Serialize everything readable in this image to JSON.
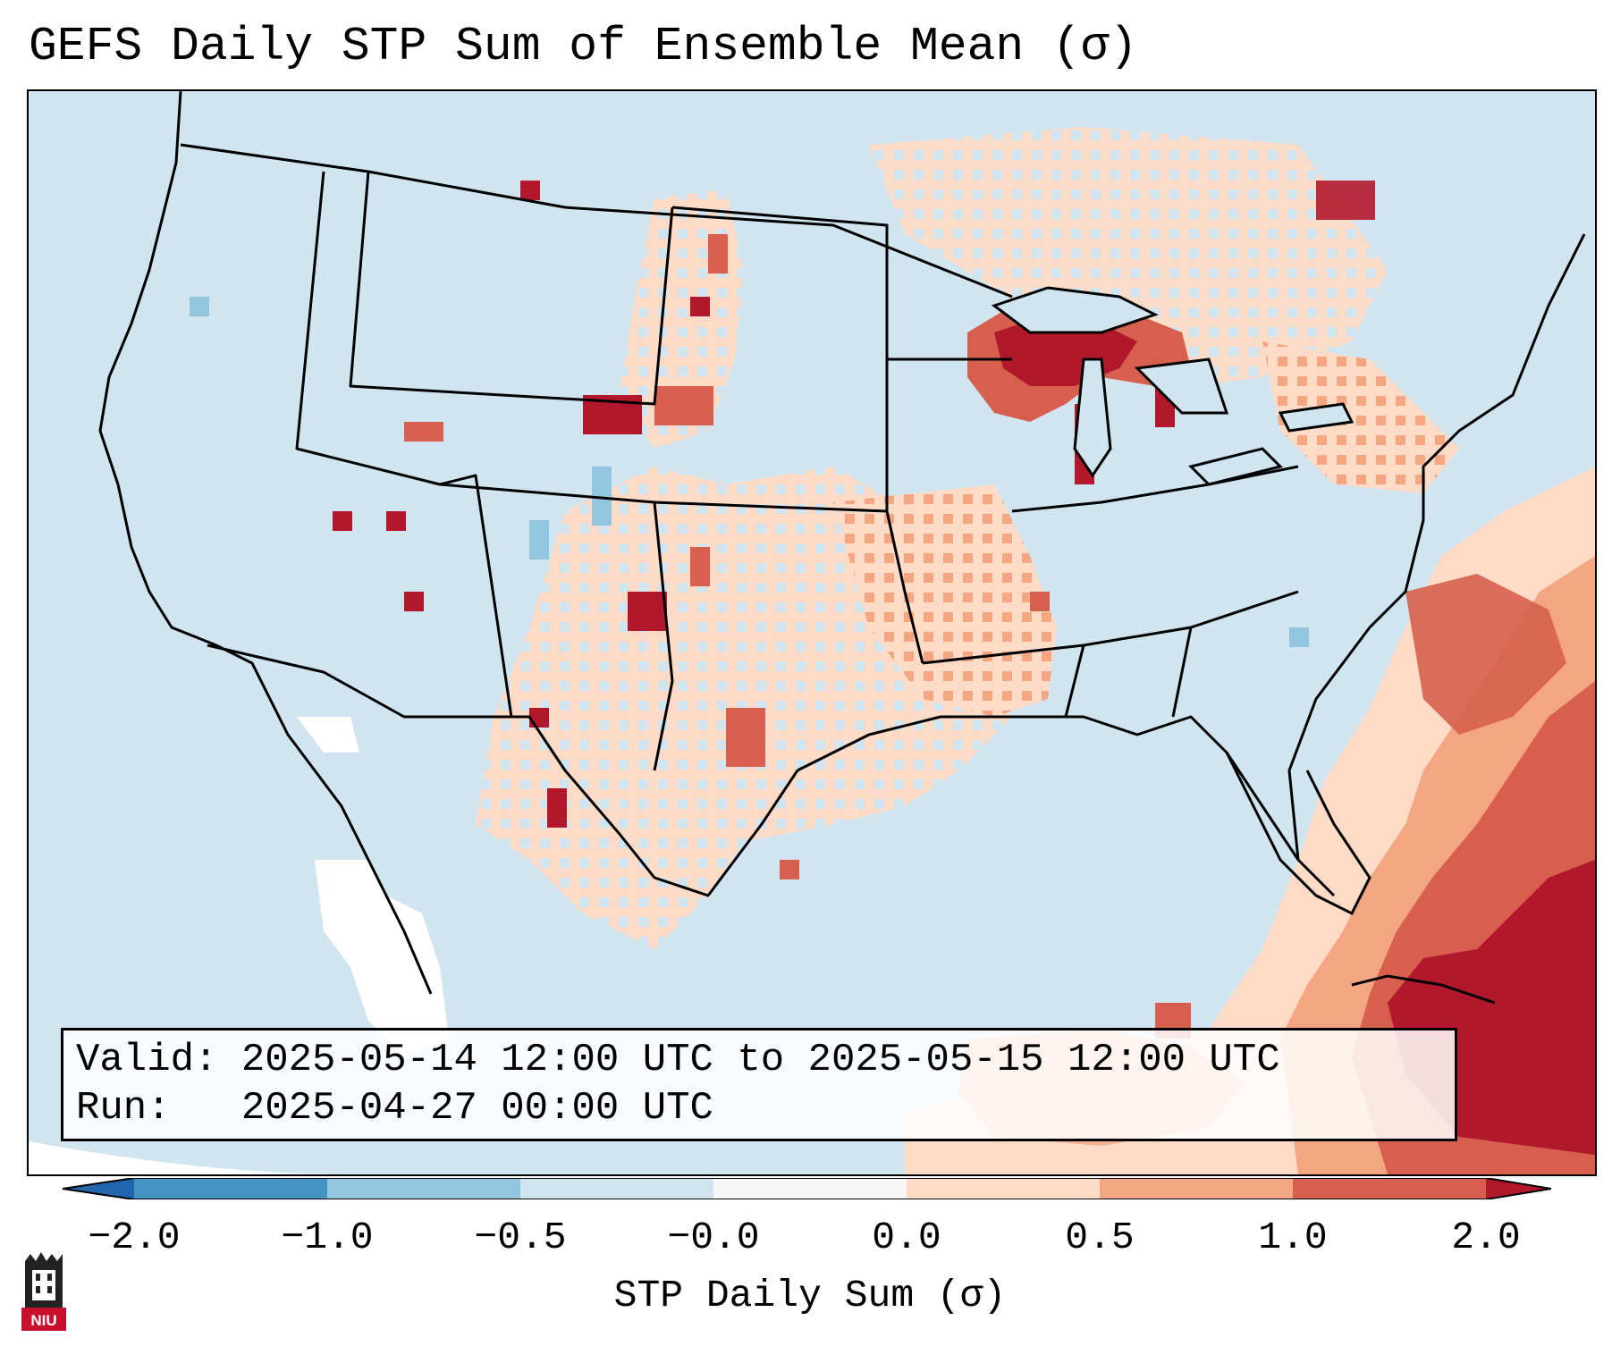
{
  "title": "GEFS Daily STP Sum of Ensemble Mean (σ)",
  "info": {
    "valid_line": "Valid: 2025-05-14 12:00 UTC to 2025-05-15 12:00 UTC",
    "run_line": "Run:   2025-04-27 00:00 UTC"
  },
  "colorbar": {
    "label": "STP Daily Sum (σ)",
    "ticks": [
      "−2.0",
      "−1.0",
      "−0.5",
      "−0.0",
      "0.0",
      "0.5",
      "1.0",
      "2.0"
    ],
    "colors": {
      "below_min": "#2166ac",
      "bin_n2_n1": "#4393c3",
      "bin_n1_n05": "#92c5de",
      "bin_n05_0": "#d1e5f0",
      "bin_0_0": "#f7f7f7",
      "bin_0_05": "#fddbc7",
      "bin_05_1": "#f4a582",
      "bin_1_2": "#d6604d",
      "above_max": "#b2182b"
    }
  },
  "map": {
    "background_color": "#d1e5f0",
    "regions": [
      {
        "name": "upper-great-lakes-max",
        "level": "1-2"
      },
      {
        "name": "bahamas-max",
        "level": "1-2"
      },
      {
        "name": "atlantic-elevated",
        "level": "0.5-1"
      },
      {
        "name": "central-plains",
        "level": "0-0.5"
      },
      {
        "name": "high-plains-spots",
        "level": "1-2"
      },
      {
        "name": "baja-white",
        "level": "0"
      }
    ]
  },
  "logo": {
    "text": "NIU"
  }
}
